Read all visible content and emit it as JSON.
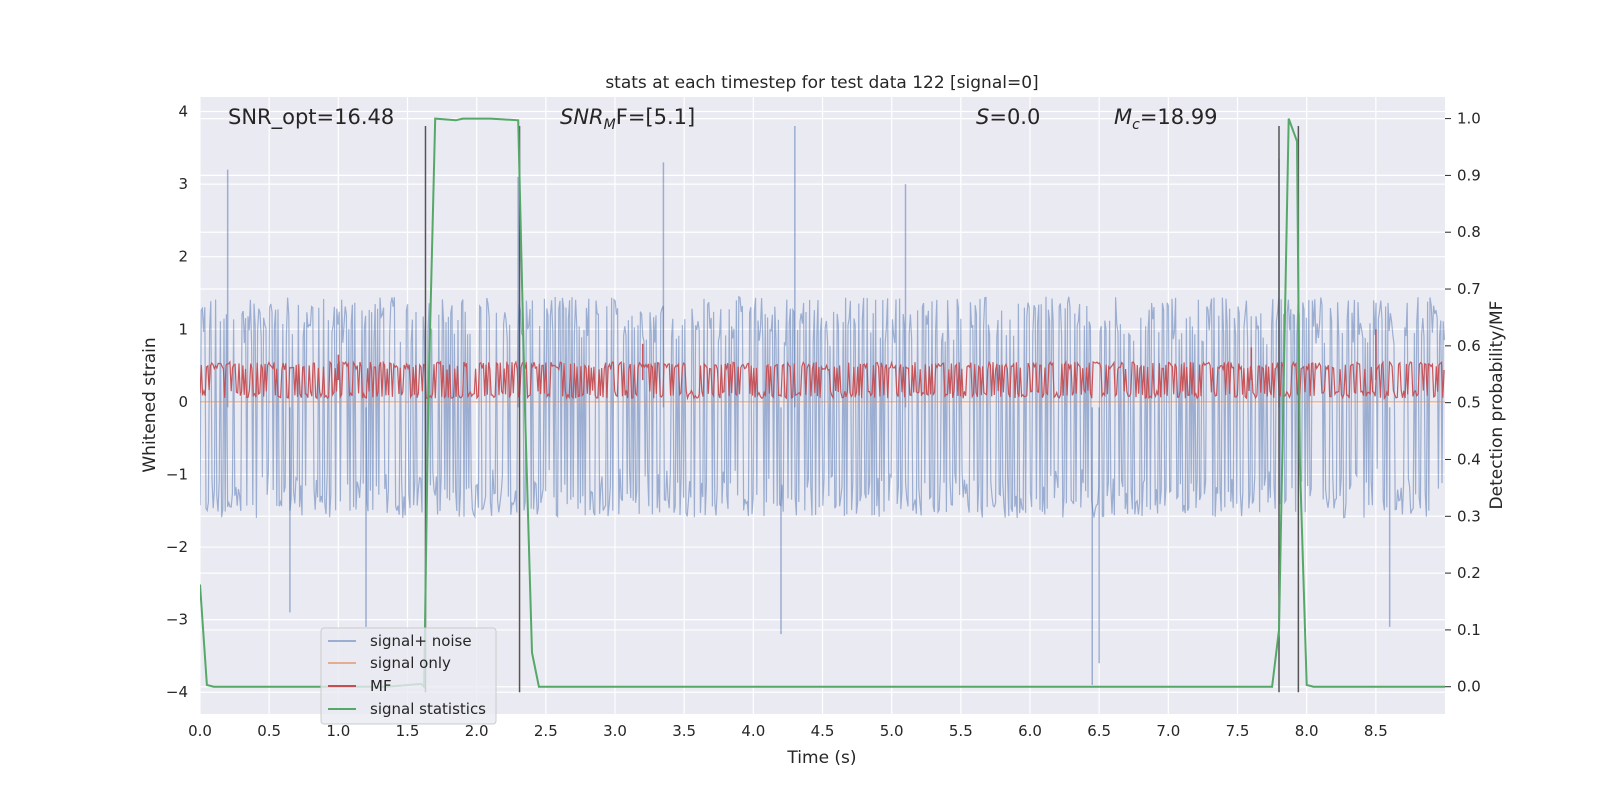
{
  "chart_data": {
    "type": "line",
    "title": "stats at each timestep for test data 122 [signal=0]",
    "xlabel": "Time (s)",
    "ylabel": "Whitened strain",
    "ylabel_right": "Detection probability/MF",
    "xlim": [
      0,
      9.0
    ],
    "ylim": [
      -4.3,
      4.2
    ],
    "ylim_right": [
      -0.048,
      1.038
    ],
    "xticks": [
      0.0,
      0.5,
      1.0,
      1.5,
      2.0,
      2.5,
      3.0,
      3.5,
      4.0,
      4.5,
      5.0,
      5.5,
      6.0,
      6.5,
      7.0,
      7.5,
      8.0,
      8.5
    ],
    "xtick_labels": [
      "0.0",
      "0.5",
      "1.0",
      "1.5",
      "2.0",
      "2.5",
      "3.0",
      "3.5",
      "4.0",
      "4.5",
      "5.0",
      "5.5",
      "6.0",
      "6.5",
      "7.0",
      "7.5",
      "8.0",
      "8.5"
    ],
    "yticks": [
      -4,
      -3,
      -2,
      -1,
      0,
      1,
      2,
      3,
      4
    ],
    "ytick_labels": [
      "−4",
      "−3",
      "−2",
      "−1",
      "0",
      "1",
      "2",
      "3",
      "4"
    ],
    "yticks_right": [
      0.0,
      0.1,
      0.2,
      0.3,
      0.4,
      0.5,
      0.6,
      0.7,
      0.8,
      0.9,
      1.0
    ],
    "ytick_labels_right": [
      "0.0",
      "0.1",
      "0.2",
      "0.3",
      "0.4",
      "0.5",
      "0.6",
      "0.7",
      "0.8",
      "0.9",
      "1.0"
    ],
    "grid": true,
    "legend_position": "lower-left",
    "annotations": {
      "snr_opt": "SNR_opt=16.48",
      "snr_mf_prefix": "SNR",
      "snr_mf_sub": "M",
      "snr_mf_rest": "F=[5.1]",
      "s_symbol": "S",
      "s_rest": "=0.0",
      "mc_symbol": "M",
      "mc_sub": "c",
      "mc_rest": "=18.99"
    },
    "series": [
      {
        "name": "signal+ noise",
        "axis": "left",
        "color": "#4c72b0",
        "kind": "noise",
        "band": [
          -1.6,
          1.45
        ],
        "spikes": [
          [
            0.2,
            3.2
          ],
          [
            1.2,
            -3.1
          ],
          [
            3.35,
            3.3
          ],
          [
            4.2,
            -3.2
          ],
          [
            4.3,
            3.8
          ],
          [
            6.45,
            -3.9
          ],
          [
            6.5,
            -3.6
          ],
          [
            7.8,
            3.35
          ],
          [
            8.6,
            -3.1
          ],
          [
            0.65,
            -2.9
          ],
          [
            2.3,
            3.1
          ],
          [
            5.1,
            3.0
          ]
        ]
      },
      {
        "name": "signal only",
        "axis": "left",
        "color": "#dd8452",
        "x": [
          0.0,
          9.0
        ],
        "y": [
          0.0,
          0.0
        ]
      },
      {
        "name": "MF",
        "axis": "left",
        "color": "#c44e52",
        "kind": "noise",
        "band": [
          0.05,
          0.55
        ],
        "spikes": [
          [
            3.2,
            0.8
          ],
          [
            8.5,
            1.0
          ],
          [
            7.6,
            0.75
          ],
          [
            1.0,
            0.65
          ]
        ]
      },
      {
        "name": "signal statistics",
        "axis": "right",
        "color": "#55a868",
        "x": [
          0.0,
          0.05,
          0.1,
          1.35,
          1.6,
          1.62,
          1.65,
          1.7,
          1.85,
          1.9,
          2.1,
          2.3,
          2.35,
          2.4,
          2.45,
          7.75,
          7.8,
          7.87,
          7.93,
          7.95,
          8.0,
          8.05,
          9.0
        ],
        "y": [
          0.18,
          0.003,
          0.0,
          0.0,
          0.005,
          0.0,
          0.5,
          1.0,
          0.997,
          1.0,
          1.0,
          0.997,
          0.48,
          0.06,
          0.0,
          0.0,
          0.1,
          1.0,
          0.96,
          0.4,
          0.003,
          0.0,
          0.0
        ]
      }
    ],
    "markers": {
      "color": "#555555",
      "lines": [
        [
          1.63,
          -4.0,
          3.8
        ],
        [
          2.31,
          -4.0,
          3.8
        ],
        [
          7.8,
          -4.0,
          3.8
        ],
        [
          7.94,
          -4.0,
          3.8
        ]
      ]
    }
  }
}
